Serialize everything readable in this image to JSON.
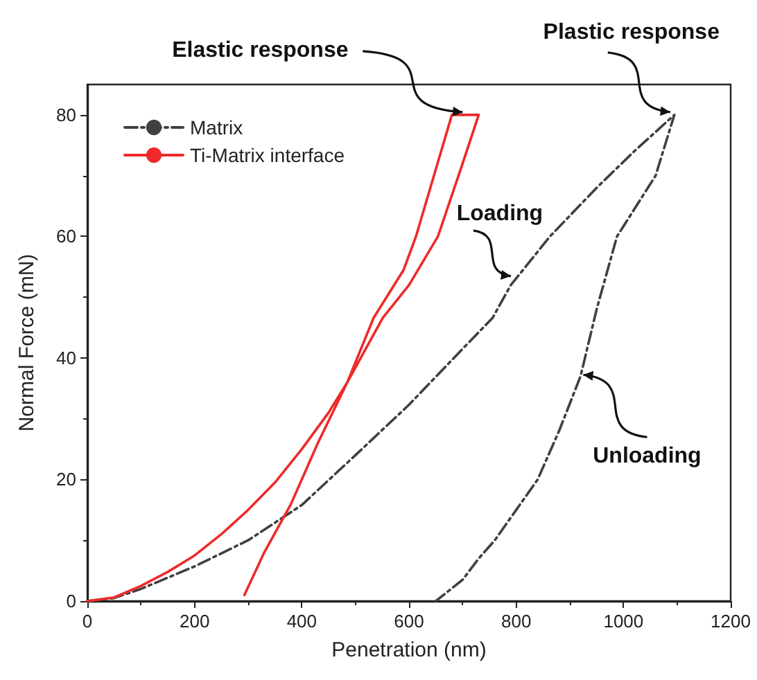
{
  "chart_data": {
    "type": "line",
    "xlabel": "Penetration (nm)",
    "ylabel": "Normal Force (mN)",
    "xlim": [
      0,
      1200
    ],
    "xticks": [
      0,
      200,
      400,
      600,
      800,
      1000,
      1200
    ],
    "ylim": [
      0,
      85
    ],
    "yticks": [
      0,
      20,
      40,
      60,
      80
    ],
    "grid": false,
    "legend": "top left",
    "marker": "none",
    "series": [
      {
        "name": "Matrix",
        "color": "#404040",
        "line_style": "dashed",
        "x": [
          0,
          50,
          100,
          200,
          300,
          400,
          500,
          600,
          700,
          756,
          790,
          863,
          950,
          1020,
          1095,
          1060,
          988,
          950,
          920,
          880,
          840,
          800,
          760,
          730,
          700,
          650
        ],
        "values": [
          0,
          0.5,
          2,
          5.7,
          10,
          15.8,
          24,
          32.3,
          41.5,
          46.6,
          52,
          60,
          68,
          74,
          80,
          70,
          60,
          48,
          37,
          28,
          20,
          15,
          10,
          7,
          3.5,
          0
        ]
      },
      {
        "name": "Ti-Matrix interface",
        "color": "#ee2a2a",
        "line_style": "solid",
        "x": [
          0,
          50,
          100,
          150,
          200,
          250,
          300,
          350,
          400,
          450,
          485,
          534,
          590,
          613,
          680,
          730,
          700,
          654,
          600,
          551,
          485,
          430,
          380,
          330,
          293
        ],
        "values": [
          0,
          0.6,
          2.5,
          4.8,
          7.5,
          11,
          15,
          19.5,
          25,
          31,
          36,
          46.6,
          54.5,
          60,
          80,
          80,
          72,
          60,
          52,
          46.6,
          36,
          26,
          16,
          8,
          1
        ]
      }
    ],
    "annotations": [
      {
        "text": "Elastic response",
        "x": 700,
        "y": 80
      },
      {
        "text": "Plastic response",
        "x": 1095,
        "y": 80
      },
      {
        "text": "Loading",
        "x": 790,
        "y": 53
      },
      {
        "text": "Unloading",
        "x": 920,
        "y": 37
      }
    ]
  }
}
